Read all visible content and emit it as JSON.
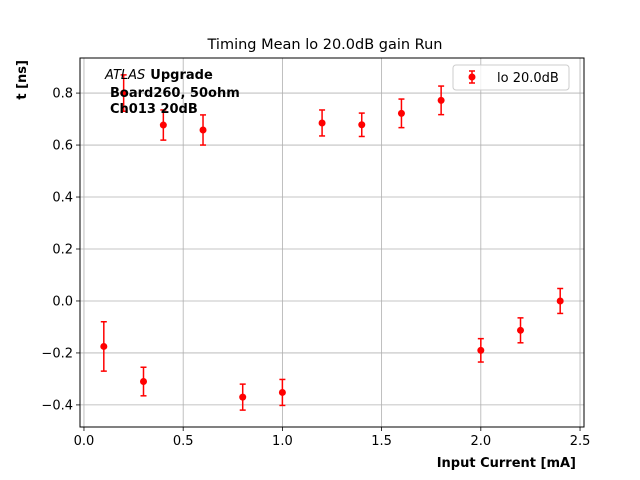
{
  "chart_data": {
    "type": "scatter",
    "title": "Timing Mean lo 20.0dB gain Run",
    "xlabel": "Input Current [mA]",
    "ylabel": "t [ns]",
    "xlim": [
      -0.02,
      2.52
    ],
    "ylim": [
      -0.485,
      0.935
    ],
    "xticks": [
      0.0,
      0.5,
      1.0,
      1.5,
      2.0,
      2.5
    ],
    "xtick_labels": [
      "0.0",
      "0.5",
      "1.0",
      "1.5",
      "2.0",
      "2.5"
    ],
    "yticks": [
      -0.4,
      -0.2,
      0.0,
      0.2,
      0.4,
      0.6,
      0.8
    ],
    "ytick_labels": [
      "−0.4",
      "−0.2",
      "0.0",
      "0.2",
      "0.4",
      "0.6",
      "0.8"
    ],
    "grid": true,
    "legend_position": "top-right",
    "series": [
      {
        "name": "lo 20.0dB",
        "color": "#ff0000",
        "marker": "circle",
        "x": [
          0.1,
          0.2,
          0.3,
          0.4,
          0.6,
          0.8,
          1.0,
          1.2,
          1.4,
          1.6,
          1.8,
          2.0,
          2.2,
          2.4
        ],
        "y": [
          -0.175,
          0.8,
          -0.31,
          0.677,
          0.658,
          -0.37,
          -0.352,
          0.685,
          0.678,
          0.722,
          0.772,
          -0.19,
          -0.113,
          0.0
        ],
        "yerr": [
          0.095,
          0.07,
          0.055,
          0.058,
          0.058,
          0.05,
          0.05,
          0.05,
          0.045,
          0.055,
          0.055,
          0.045,
          0.048,
          0.048
        ]
      }
    ],
    "annotation": {
      "line1_italic": "ATLAS",
      "line1_bold": "Upgrade",
      "line2": "Board260, 50ohm",
      "line3": "Ch013 20dB"
    }
  }
}
